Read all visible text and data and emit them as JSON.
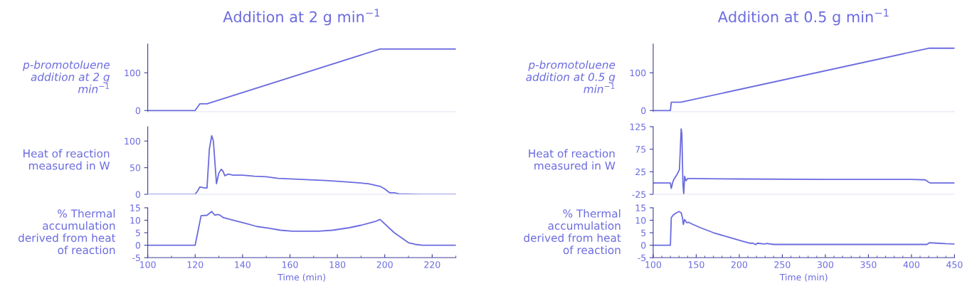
{
  "chart_data": [
    {
      "type": "line",
      "title": "Addition at 2 g min$^{−1}$",
      "ylabel": "p-bromotoluene addition at 2 g min$^{−1}$",
      "color": "#6b6be0",
      "tick_labels": "y",
      "xlim": [
        100,
        230
      ],
      "ylim": [
        -3,
        176
      ],
      "yticks": [
        0,
        100
      ],
      "x": [
        100,
        120,
        122,
        125,
        198,
        230
      ],
      "values": [
        0,
        0,
        18,
        18,
        163,
        163
      ]
    },
    {
      "type": "line",
      "ylabel": "Heat of reaction measured in W",
      "color": "#6b6be0",
      "tick_labels": "y",
      "xlim": [
        100,
        230
      ],
      "ylim": [
        0,
        127
      ],
      "yticks": [
        0,
        50,
        100
      ],
      "x": [
        100,
        120,
        121,
        122,
        124,
        125,
        126,
        127,
        127.7,
        128.5,
        129,
        130,
        131,
        131.8,
        132.5,
        134,
        136,
        140,
        145,
        150,
        155,
        165,
        175,
        185,
        193,
        198,
        200,
        202,
        204,
        206,
        215,
        230
      ],
      "values": [
        0,
        0,
        6,
        14,
        12,
        12,
        85,
        110,
        100,
        50,
        20,
        40,
        47,
        43,
        35,
        38,
        36,
        36,
        34,
        33,
        30,
        28,
        26,
        23,
        20,
        15,
        10,
        3,
        3,
        1,
        0,
        0
      ]
    },
    {
      "type": "line",
      "ylabel": "% Thermal accumulation derived from heat of reaction",
      "xlabel": "Time (min)",
      "color": "#6b6be0",
      "xlim": [
        100,
        230
      ],
      "xticks": [
        100,
        120,
        140,
        160,
        180,
        200,
        220
      ],
      "ylim": [
        -5,
        15
      ],
      "yticks": [
        -5,
        0,
        5,
        10,
        15
      ],
      "x": [
        100,
        120,
        122.5,
        125,
        127,
        128.3,
        129.5,
        130.5,
        132,
        138,
        141,
        146,
        151,
        156,
        161,
        172,
        178,
        185,
        190,
        196,
        198,
        204,
        210,
        213,
        216,
        230
      ],
      "values": [
        0,
        0,
        11.8,
        12,
        13.5,
        12,
        12.3,
        12,
        11,
        9.5,
        8.8,
        7.5,
        6.8,
        6,
        5.6,
        5.6,
        6,
        7,
        8,
        9.5,
        10.3,
        5,
        1,
        0.3,
        0,
        0
      ]
    },
    {
      "type": "line",
      "title": "Addition at 0.5 g min$^{−1}$",
      "ylabel": "p-bromotoluene addition at 0.5 g min$^{−1}$",
      "color": "#6b6be0",
      "tick_labels": "y",
      "xlim": [
        100,
        450
      ],
      "ylim": [
        -3,
        176
      ],
      "yticks": [
        0,
        100
      ],
      "x": [
        100,
        120,
        121,
        132,
        420,
        450
      ],
      "values": [
        0,
        0,
        22,
        22,
        165,
        165
      ]
    },
    {
      "type": "line",
      "ylabel": "Heat of reaction measured in W",
      "color": "#6b6be0",
      "tick_labels": "y",
      "xlim": [
        100,
        450
      ],
      "ylim": [
        -25,
        125
      ],
      "yticks": [
        -25,
        25,
        75,
        125
      ],
      "x": [
        100,
        120,
        121,
        122.5,
        124,
        128,
        130.5,
        132.5,
        133.3,
        134.5,
        135.5,
        136.5,
        138,
        140,
        145,
        200,
        300,
        400,
        416,
        420,
        422,
        450
      ],
      "values": [
        0,
        0,
        -12,
        0,
        8,
        20,
        30,
        120,
        110,
        0,
        -25,
        15,
        5,
        10,
        10,
        9,
        8,
        8,
        7,
        2,
        0,
        0
      ]
    },
    {
      "type": "line",
      "ylabel": "% Thermal accumulation derived from heat of reaction",
      "xlabel": "Time (min)",
      "color": "#6b6be0",
      "xlim": [
        100,
        450
      ],
      "xticks": [
        100,
        150,
        200,
        250,
        300,
        350,
        400,
        450
      ],
      "ylim": [
        -5,
        15
      ],
      "yticks": [
        -5,
        0,
        5,
        10,
        15
      ],
      "x": [
        100,
        120,
        121,
        123,
        127,
        130,
        132.5,
        134,
        135,
        136.5,
        139,
        141,
        145,
        155,
        170,
        185,
        195,
        205,
        212,
        216,
        219,
        221,
        229,
        232,
        240,
        300,
        418,
        421,
        430,
        440,
        450
      ],
      "values": [
        0,
        0,
        11,
        12,
        13,
        13.5,
        13,
        11,
        8.3,
        10.3,
        9,
        9.2,
        8.5,
        7,
        5,
        3.5,
        2.5,
        1.5,
        0.8,
        0.8,
        0.2,
        0.8,
        0.5,
        0.7,
        0.3,
        0.3,
        0.3,
        1,
        0.8,
        0.6,
        0.5
      ]
    }
  ]
}
